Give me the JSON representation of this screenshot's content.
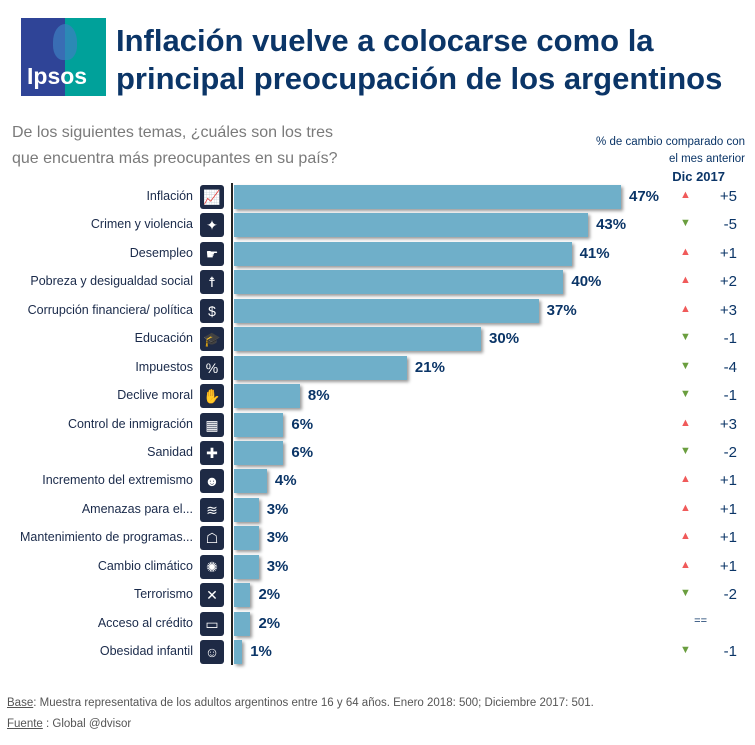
{
  "logo_text": "Ipsos",
  "title_line1": "Inflación vuelve a colocarse como la",
  "title_line2": "principal preocupación de los argentinos",
  "question_line1": "De los siguientes temas, ¿cuáles son los tres",
  "question_line2": "que encuentra más preocupantes en su país?",
  "change_header_line1": "% de cambio comparado con",
  "change_header_line2": "el mes anterior",
  "change_header_period": "Dic 2017",
  "colors": {
    "bar": "#6fafc9",
    "up": "#f05a5a",
    "down": "#6a9e3f",
    "text": "#0b3567"
  },
  "chart_data": {
    "type": "bar",
    "orientation": "horizontal",
    "xlim": [
      0,
      47
    ],
    "categories": [
      "Inflación",
      "Crimen y violencia",
      "Desempleo",
      "Pobreza y desigualdad social",
      "Corrupción financiera/ política",
      "Educación",
      "Impuestos",
      "Declive moral",
      "Control de inmigración",
      "Sanidad",
      "Incremento del extremismo",
      "Amenazas para el...",
      "Mantenimiento de programas...",
      "Cambio climático",
      "Terrorismo",
      "Acceso al crédito",
      "Obesidad infantil"
    ],
    "values": [
      47,
      43,
      41,
      40,
      37,
      30,
      21,
      8,
      6,
      6,
      4,
      3,
      3,
      3,
      2,
      2,
      1
    ],
    "value_labels": [
      "47%",
      "43%",
      "41%",
      "40%",
      "37%",
      "30%",
      "21%",
      "8%",
      "6%",
      "6%",
      "4%",
      "3%",
      "3%",
      "3%",
      "2%",
      "2%",
      "1%"
    ],
    "icons": [
      "chart-up-icon",
      "gun-icon",
      "unemployment-icon",
      "person-icon",
      "money-bag-icon",
      "graduation-cap-icon",
      "tax-icon",
      "moral-icon",
      "suitcase-icon",
      "medical-icon",
      "mask-icon",
      "environment-icon",
      "program-icon",
      "fire-icon",
      "terrorism-icon",
      "credit-card-icon",
      "child-icon"
    ],
    "change_direction": [
      "up",
      "down",
      "up",
      "up",
      "up",
      "down",
      "down",
      "down",
      "up",
      "down",
      "up",
      "up",
      "up",
      "up",
      "down",
      "equal",
      "down"
    ],
    "change_labels": [
      "+5",
      "-5",
      "+1",
      "+2",
      "+3",
      "-1",
      "-4",
      "-1",
      "+3",
      "-2",
      "+1",
      "+1",
      "+1",
      "+1",
      "-2",
      "==",
      "-1"
    ]
  },
  "footer": {
    "base_label": "Base",
    "base_text": ": Muestra representativa de los adultos argentinos entre 16 y 64 años. Enero 2018: 500; Diciembre  2017: 501.",
    "source_label": "Fuente",
    "source_text": " : Global @dvisor"
  }
}
